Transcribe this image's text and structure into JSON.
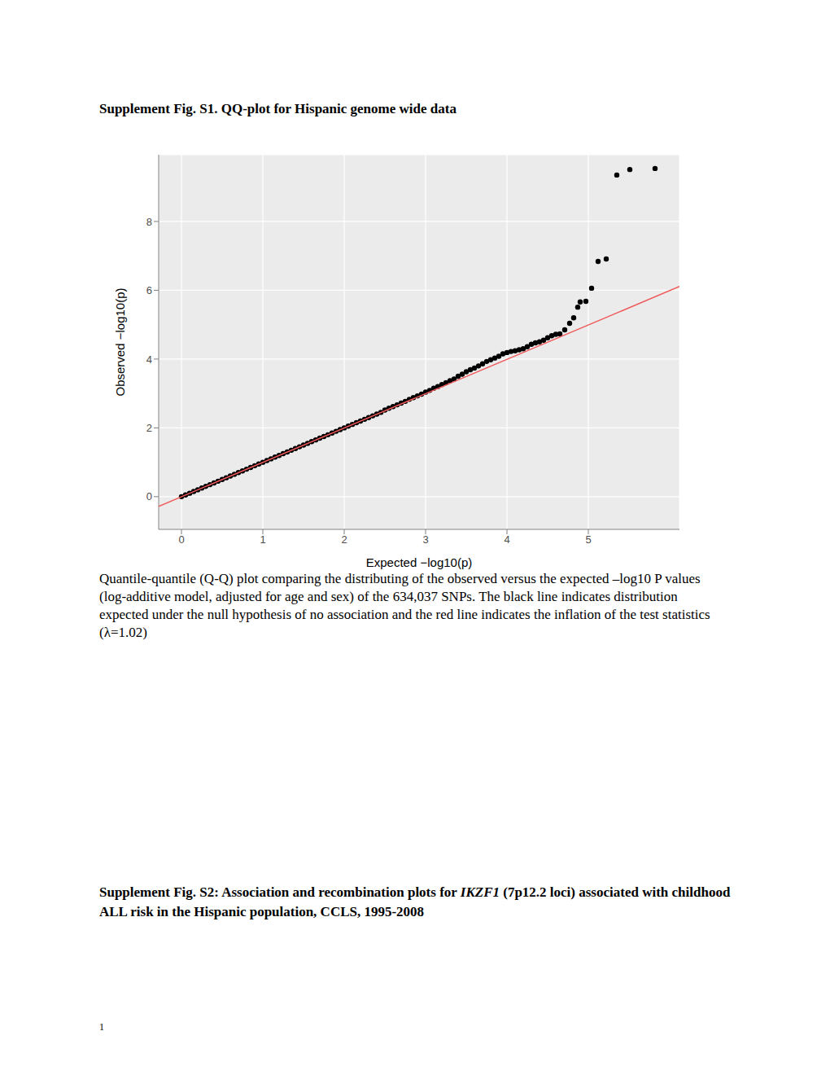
{
  "page": {
    "title": "Supplement Fig. S1. QQ-plot for Hispanic genome wide data",
    "caption": "Quantile-quantile (Q-Q) plot comparing the distributing of the observed versus the expected –log10 P values (log-additive model, adjusted for age and sex) of the 634,037 SNPs. The black line indicates distribution expected under the null hypothesis of no association and the red line indicates the inflation of the test statistics (λ=1.02)",
    "figure_s2_title": {
      "before": "Supplement Fig. S2: Association and recombination plots for ",
      "gene": "IKZF1",
      "after": " (7p12.2 loci) associated with childhood ALL risk in the Hispanic population, CCLS, 1995-2008"
    },
    "page_number": "1"
  },
  "chart_data": {
    "type": "scatter",
    "xlabel": "Expected −log10(p)",
    "ylabel": "Observed −log10(p)",
    "xlim": [
      -0.28,
      6.12
    ],
    "ylim": [
      -0.95,
      9.94
    ],
    "xticks": [
      0,
      1,
      2,
      3,
      4,
      5
    ],
    "yticks": [
      0,
      2,
      4,
      6,
      8
    ],
    "grid": true,
    "series": [
      {
        "type": "scatter",
        "color": "#000000",
        "marker": "circle",
        "x": [
          0,
          0.05,
          0.1,
          0.15,
          0.2,
          0.25,
          0.3,
          0.35,
          0.4,
          0.45,
          0.5,
          0.55,
          0.6,
          0.65,
          0.7,
          0.75,
          0.8,
          0.85,
          0.9,
          0.95,
          1,
          1.05,
          1.1,
          1.15,
          1.2,
          1.25,
          1.3,
          1.35,
          1.4,
          1.45,
          1.5,
          1.55,
          1.6,
          1.65,
          1.7,
          1.75,
          1.8,
          1.85,
          1.9,
          1.95,
          2,
          2.05,
          2.1,
          2.15,
          2.2,
          2.25,
          2.3,
          2.35,
          2.4,
          2.45,
          2.5,
          2.55,
          2.6,
          2.65,
          2.7,
          2.75,
          2.8,
          2.85,
          2.9,
          2.95,
          3,
          3.05,
          3.1,
          3.15,
          3.2,
          3.25,
          3.3,
          3.35,
          3.4,
          3.45,
          3.5,
          3.55,
          3.6,
          3.65,
          3.7,
          3.75,
          3.8,
          3.85,
          3.9,
          3.95,
          4,
          4.05,
          4.1,
          4.15,
          4.2,
          4.25,
          4.3,
          4.35,
          4.4,
          4.45,
          4.5,
          4.55,
          4.6,
          4.65,
          4.71,
          4.77,
          4.82,
          4.87,
          4.9,
          4.97,
          5.04,
          5.12,
          5.22,
          5.35,
          5.51,
          5.82
        ],
        "values": [
          0,
          0.05,
          0.1,
          0.15,
          0.2,
          0.25,
          0.3,
          0.35,
          0.4,
          0.45,
          0.5,
          0.55,
          0.6,
          0.65,
          0.7,
          0.75,
          0.8,
          0.85,
          0.9,
          0.95,
          1,
          1.05,
          1.1,
          1.15,
          1.2,
          1.25,
          1.3,
          1.35,
          1.4,
          1.45,
          1.5,
          1.55,
          1.6,
          1.65,
          1.7,
          1.75,
          1.8,
          1.85,
          1.9,
          1.95,
          2,
          2.05,
          2.1,
          2.15,
          2.2,
          2.25,
          2.3,
          2.35,
          2.4,
          2.45,
          2.52,
          2.57,
          2.62,
          2.67,
          2.72,
          2.77,
          2.83,
          2.88,
          2.93,
          2.98,
          3.04,
          3.09,
          3.15,
          3.2,
          3.26,
          3.31,
          3.37,
          3.42,
          3.5,
          3.56,
          3.63,
          3.69,
          3.74,
          3.8,
          3.86,
          3.93,
          3.98,
          4.03,
          4.08,
          4.15,
          4.19,
          4.22,
          4.24,
          4.27,
          4.3,
          4.36,
          4.43,
          4.47,
          4.5,
          4.55,
          4.62,
          4.68,
          4.72,
          4.73,
          4.85,
          5.04,
          5.2,
          5.51,
          5.66,
          5.68,
          6.06,
          6.84,
          6.91,
          9.35,
          9.51,
          9.54
        ]
      },
      {
        "type": "line",
        "color": "#F05A5A",
        "x": [
          -0.28,
          6.12
        ],
        "values": [
          -0.28,
          6.11
        ]
      }
    ]
  }
}
